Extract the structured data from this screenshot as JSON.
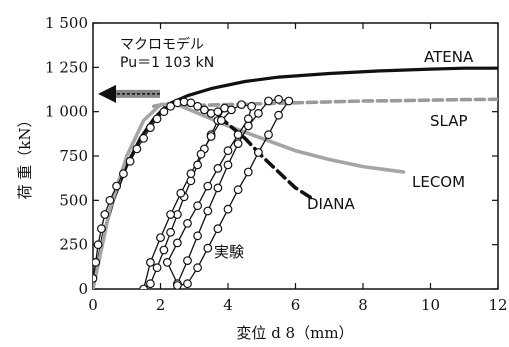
{
  "chart_data": {
    "type": "line",
    "title": "",
    "xlabel": "変位 d 8（mm）",
    "ylabel": "荷 重（kN）",
    "xlim": [
      0,
      12
    ],
    "ylim": [
      0,
      1500
    ],
    "xticks": [
      0,
      2,
      4,
      6,
      8,
      10,
      12
    ],
    "xtick_labels": [
      "0",
      "2",
      "4",
      "6",
      "8",
      "10",
      "12"
    ],
    "yticks": [
      0,
      250,
      500,
      750,
      1000,
      1250,
      1500
    ],
    "ytick_labels": [
      "0",
      "250",
      "500",
      "750",
      "1 000",
      "1 250",
      "1 500"
    ],
    "grid": false,
    "legend": "none",
    "annotation": {
      "line1": "マクロモデル",
      "line2": "Pu＝1 103 kN",
      "arrow_y": 1100
    },
    "series": [
      {
        "name": "ATENA",
        "style": "solid-thick",
        "color": "#111111",
        "x": [
          0,
          0.3,
          0.6,
          1.0,
          1.4,
          1.8,
          2.2,
          2.8,
          3.5,
          4.5,
          5.5,
          7,
          8.5,
          10,
          11,
          12
        ],
        "y": [
          0,
          300,
          500,
          700,
          850,
          960,
          1040,
          1090,
          1130,
          1170,
          1195,
          1215,
          1230,
          1240,
          1245,
          1245
        ]
      },
      {
        "name": "SLAP",
        "style": "dashed-gray",
        "color": "#9a9a9a",
        "x": [
          1.8,
          2.2,
          3,
          4,
          5,
          6,
          7,
          8,
          9,
          10,
          11,
          12
        ],
        "y": [
          1030,
          1045,
          1035,
          1040,
          1045,
          1050,
          1055,
          1060,
          1062,
          1065,
          1068,
          1070
        ]
      },
      {
        "name": "LECOM",
        "style": "solid-gray",
        "color": "#a5a5a5",
        "x": [
          0,
          0.5,
          1.0,
          1.5,
          2.0,
          2.5,
          3,
          4,
          5,
          6,
          7,
          8,
          9.2
        ],
        "y": [
          0,
          450,
          750,
          950,
          1040,
          1040,
          1000,
          920,
          850,
          780,
          730,
          690,
          660
        ]
      },
      {
        "name": "DIANA",
        "style": "dashed-black",
        "color": "#111111",
        "x": [
          2.4,
          3.0,
          3.6,
          4.0,
          4.5,
          5.0,
          5.5,
          6.0,
          6.5
        ],
        "y": [
          1050,
          1040,
          990,
          930,
          850,
          750,
          660,
          570,
          510
        ]
      },
      {
        "name": "実験",
        "style": "marker-line",
        "color": "#111111",
        "x": [
          0,
          0.08,
          0.15,
          0.25,
          0.35,
          0.5,
          0.7,
          0.9,
          1.1,
          1.3,
          1.5,
          1.7,
          1.9,
          2.1,
          2.3,
          2.5,
          2.7,
          2.9,
          3.1,
          3.3,
          3.5,
          3.7,
          3.9,
          3.7,
          3.5,
          3.3,
          3.1,
          2.9,
          2.7,
          2.5,
          2.3,
          2.1,
          1.9,
          1.7,
          1.5,
          1.7,
          2.0,
          2.3,
          2.6,
          2.9,
          3.2,
          3.5,
          3.8,
          4.1,
          4.4,
          4.7,
          4.6,
          4.3,
          4.0,
          3.7,
          3.4,
          3.1,
          2.8,
          2.5,
          2.2,
          2.5,
          2.8,
          3.1,
          3.4,
          3.7,
          4.0,
          4.3,
          4.6,
          4.9,
          5.2,
          5.5,
          5.8,
          5.5,
          5.2,
          4.9,
          4.6,
          4.3,
          4.0,
          3.7,
          3.4,
          3.1,
          2.8,
          2.5
        ],
        "y": [
          60,
          150,
          250,
          340,
          420,
          500,
          580,
          650,
          720,
          790,
          850,
          910,
          960,
          1000,
          1030,
          1050,
          1055,
          1050,
          1030,
          1010,
          990,
          1000,
          1020,
          950,
          870,
          790,
          700,
          610,
          520,
          420,
          320,
          220,
          120,
          30,
          0,
          150,
          290,
          420,
          540,
          650,
          760,
          860,
          950,
          1010,
          1040,
          1030,
          960,
          870,
          780,
          680,
          580,
          470,
          370,
          260,
          150,
          30,
          160,
          300,
          440,
          570,
          700,
          820,
          920,
          990,
          1060,
          1070,
          1060,
          980,
          870,
          770,
          660,
          560,
          450,
          340,
          230,
          120,
          30,
          20
        ]
      }
    ],
    "series_labels": [
      "ATENA",
      "SLAP",
      "LECOM",
      "DIANA",
      "実験"
    ]
  }
}
